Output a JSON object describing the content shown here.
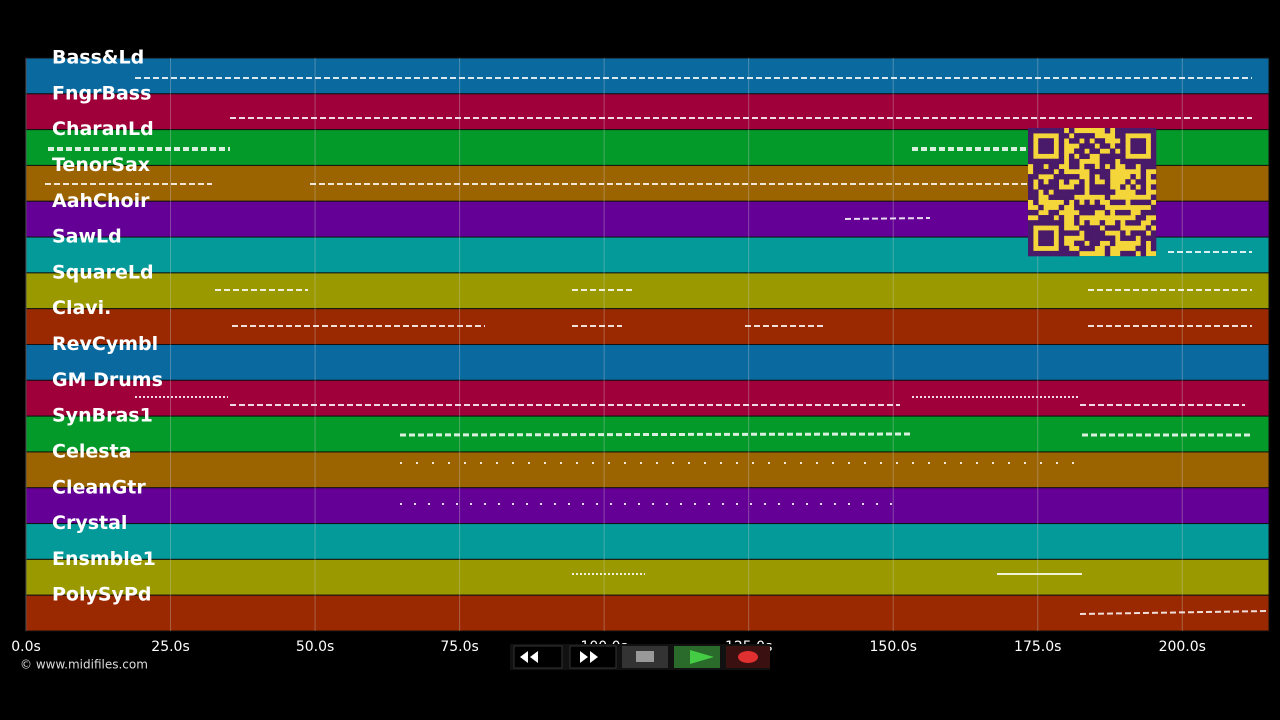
{
  "tracks": [
    {
      "name": "Bass&Ld",
      "color": "#0a6aa0"
    },
    {
      "name": "FngrBass",
      "color": "#a0003a"
    },
    {
      "name": "CharanLd",
      "color": "#049a2a"
    },
    {
      "name": "TenorSax",
      "color": "#9c6400"
    },
    {
      "name": "AahChoir",
      "color": "#640096"
    },
    {
      "name": "SawLd",
      "color": "#049a9a"
    },
    {
      "name": "SquareLd",
      "color": "#9a9a00"
    },
    {
      "name": "Clavi.",
      "color": "#9a2800"
    },
    {
      "name": "RevCymbl",
      "color": "#0a6aa0"
    },
    {
      "name": "GM Drums",
      "color": "#a0003a"
    },
    {
      "name": "SynBras1",
      "color": "#049a2a"
    },
    {
      "name": "Celesta",
      "color": "#9c6400"
    },
    {
      "name": "CleanGtr",
      "color": "#640096"
    },
    {
      "name": "Crystal",
      "color": "#049a9a"
    },
    {
      "name": "Ensmble1",
      "color": "#9a9a00"
    },
    {
      "name": "PolySyPd",
      "color": "#9a2800"
    }
  ],
  "timeline": {
    "xlim": [
      0,
      215
    ],
    "ticks": [
      {
        "value": 0,
        "label": "0.0s"
      },
      {
        "value": 25,
        "label": "25.0s"
      },
      {
        "value": 50,
        "label": "50.0s"
      },
      {
        "value": 75,
        "label": "75.0s"
      },
      {
        "value": 100,
        "label": "100.0s"
      },
      {
        "value": 125,
        "label": "125.0s"
      },
      {
        "value": 150,
        "label": "150.0s"
      },
      {
        "value": 175,
        "label": "175.0s"
      },
      {
        "value": 200,
        "label": "200.0s"
      }
    ]
  },
  "footer": {
    "copyright": "© www.midifiles.com"
  }
}
